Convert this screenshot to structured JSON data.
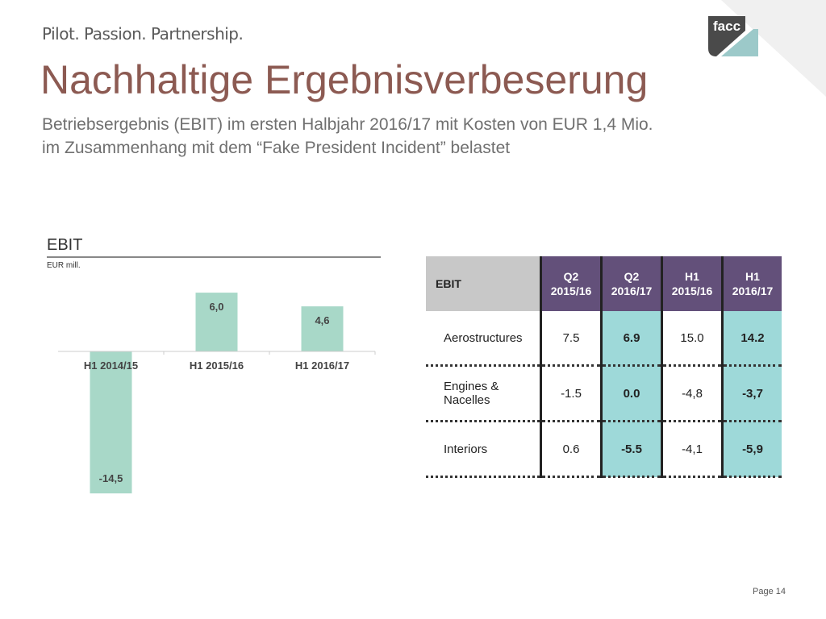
{
  "header": {
    "tagline": "Pilot. Passion. Partnership.",
    "logo_text": "facc",
    "title": "Nachhaltige Ergebnisverbeserung",
    "subtitle_line1": "Betriebsergebnis (EBIT) im ersten Halbjahr 2016/17 mit Kosten von EUR 1,4 Mio.",
    "subtitle_line2": "im Zusammenhang mit dem “Fake President Incident” belastet"
  },
  "chart_data": {
    "type": "bar",
    "title": "EBIT",
    "ylabel": "EUR mill.",
    "categories": [
      "H1 2014/15",
      "H1 2015/16",
      "H1 2016/17"
    ],
    "values": [
      -14.5,
      6.0,
      4.6
    ],
    "labels": [
      "-14,5",
      "6,0",
      "4,6"
    ],
    "color": "#a8d8c8",
    "grid": false
  },
  "table": {
    "corner": "EBIT",
    "columns": [
      {
        "l1": "Q2",
        "l2": "2015/16"
      },
      {
        "l1": "Q2",
        "l2": "2016/17"
      },
      {
        "l1": "H1",
        "l2": "2015/16"
      },
      {
        "l1": "H1",
        "l2": "2016/17"
      }
    ],
    "rows": [
      {
        "label": "Aerostructures",
        "cells": [
          "7.5",
          "6.9",
          "15.0",
          "14.2"
        ]
      },
      {
        "label": "Engines & Nacelles",
        "cells": [
          "-1.5",
          "0.0",
          "-4,8",
          "-3,7"
        ]
      },
      {
        "label": "Interiors",
        "cells": [
          "0.6",
          "-5.5",
          "-4,1",
          "-5,9"
        ]
      }
    ],
    "header_color": "#63507a",
    "highlight_color": "#9ed9d9"
  },
  "footer": {
    "page": "Page 14"
  }
}
